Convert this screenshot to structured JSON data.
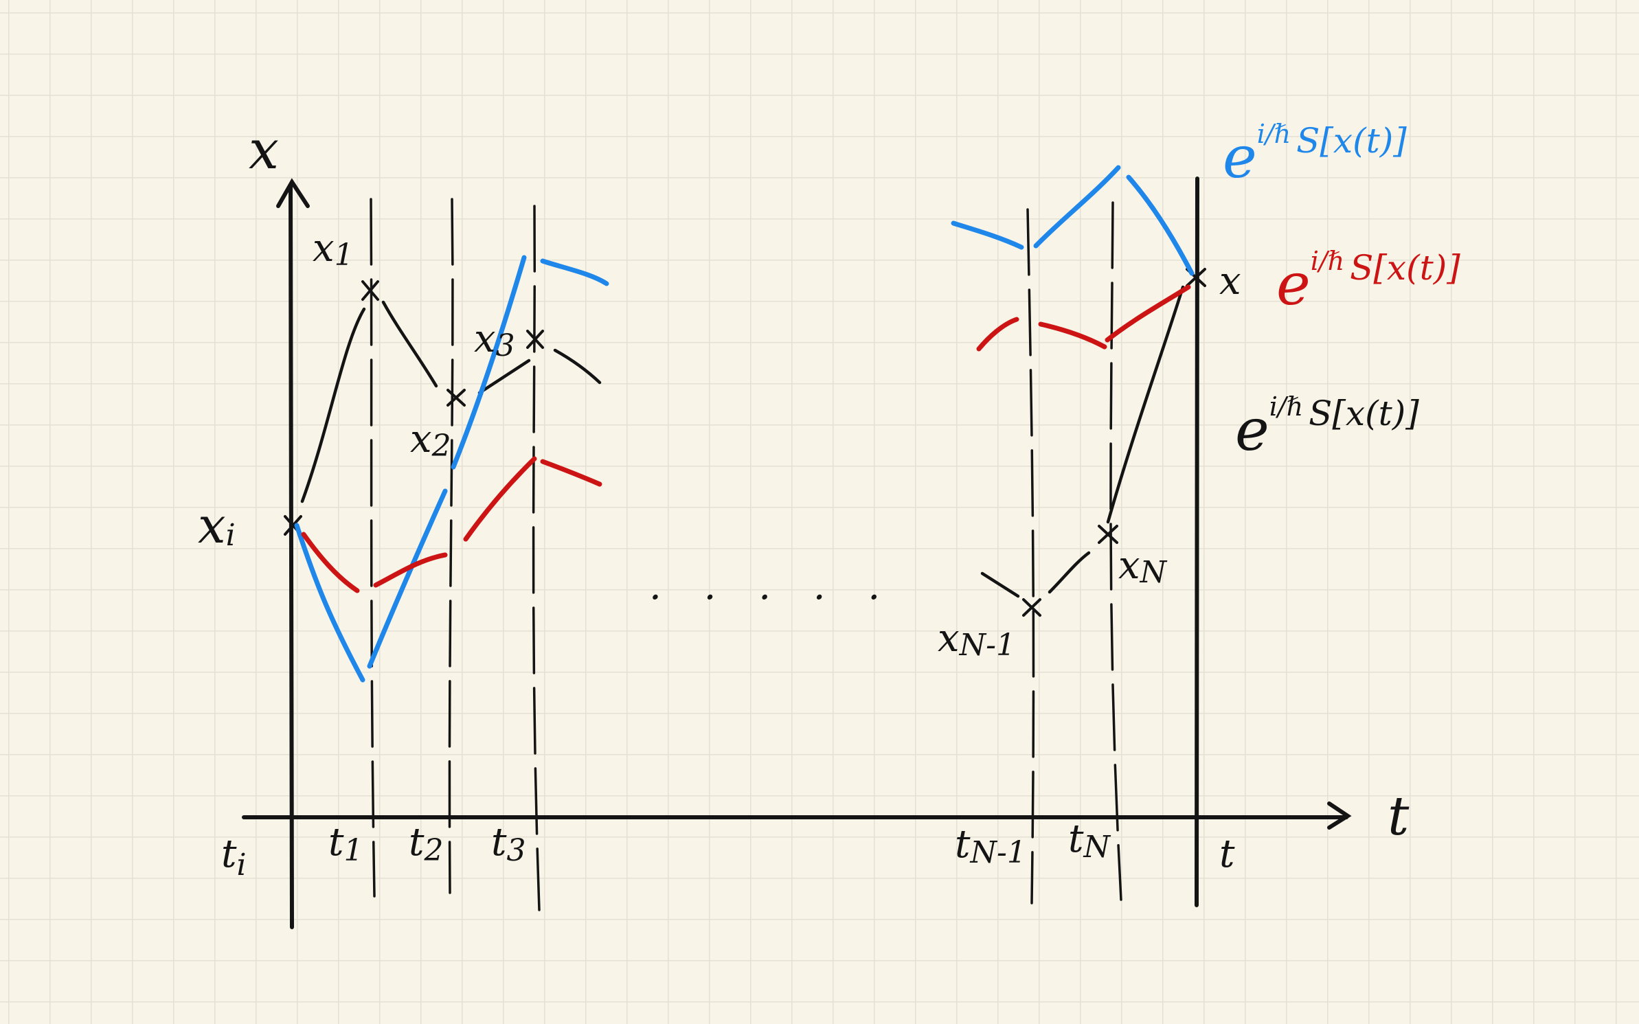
{
  "axes": {
    "x_axis_label": "t",
    "y_axis_label": "x"
  },
  "time_labels": {
    "t_i": "t",
    "t_i_sub": "i",
    "t1": "t",
    "t1_sub": "1",
    "t2": "t",
    "t2_sub": "2",
    "t3": "t",
    "t3_sub": "3",
    "tN_minus_1": "t",
    "tN_minus_1_sub": "N-1",
    "tN": "t",
    "tN_sub": "N",
    "t_final": "t"
  },
  "point_labels": {
    "x_i": "x",
    "x_i_sub": "i",
    "x1": "x",
    "x1_sub": "1",
    "x2": "x",
    "x2_sub": "2",
    "x3": "x",
    "x3_sub": "3",
    "xN_minus_1": "x",
    "xN_minus_1_sub": "N-1",
    "xN": "x",
    "xN_sub": "N",
    "x_final": "x"
  },
  "ellipsis": ". . . . .",
  "phase_factors": {
    "base": "e",
    "superscript": "i/ℏ",
    "blue": "S[x(t)]",
    "red": "S[x(t)]",
    "black": "S[x(t)]"
  },
  "colors": {
    "ink": "#141414",
    "blue": "#1f86ea",
    "red": "#cc1414",
    "paper": "#f8f5e8",
    "grid": "#e4e1d4"
  }
}
